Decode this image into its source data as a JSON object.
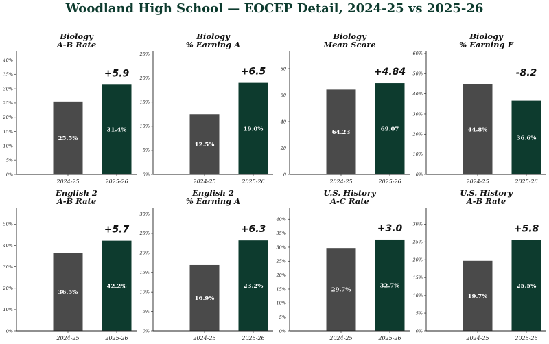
{
  "title": "Woodland High School — EOCEP Detail, 2024-25 vs 2025-26",
  "colors": {
    "prior": "#4a4a4a",
    "current": "#0d3b2e",
    "title": "#0d3b2e"
  },
  "chart_data": [
    {
      "type": "bar",
      "title_line1": "Biology",
      "title_line2": "A-B Rate",
      "categories": [
        "2024-25",
        "2025-26"
      ],
      "values": [
        25.5,
        31.4
      ],
      "value_labels": [
        "25.5%",
        "31.4%"
      ],
      "delta_label": "+5.9",
      "ylim": [
        0,
        43
      ],
      "yticks": [
        0,
        5,
        10,
        15,
        20,
        25,
        30,
        35,
        40
      ],
      "ytick_labels": [
        "0%",
        "5%",
        "10%",
        "15%",
        "20%",
        "25%",
        "30%",
        "35%",
        "40%"
      ]
    },
    {
      "type": "bar",
      "title_line1": "Biology",
      "title_line2": "% Earning A",
      "categories": [
        "2024-25",
        "2025-26"
      ],
      "values": [
        12.5,
        19.0
      ],
      "value_labels": [
        "12.5%",
        "19.0%"
      ],
      "delta_label": "+6.5",
      "ylim": [
        0,
        25.5
      ],
      "yticks": [
        0,
        5,
        10,
        15,
        20,
        25
      ],
      "ytick_labels": [
        "0%",
        "5%",
        "10%",
        "15%",
        "20%",
        "25%"
      ]
    },
    {
      "type": "bar",
      "title_line1": "Biology",
      "title_line2": "Mean Score",
      "categories": [
        "2024-25",
        "2025-26"
      ],
      "values": [
        64.23,
        69.07
      ],
      "value_labels": [
        "64.23",
        "69.07"
      ],
      "delta_label": "+4.84",
      "ylim": [
        0,
        93
      ],
      "yticks": [
        0,
        20,
        40,
        60,
        80
      ],
      "ytick_labels": [
        "0",
        "20",
        "40",
        "60",
        "80"
      ]
    },
    {
      "type": "bar",
      "title_line1": "Biology",
      "title_line2": "% Earning F",
      "categories": [
        "2024-25",
        "2025-26"
      ],
      "values": [
        44.8,
        36.6
      ],
      "value_labels": [
        "44.8%",
        "36.6%"
      ],
      "delta_label": "-8.2",
      "ylim": [
        0,
        61
      ],
      "yticks": [
        0,
        10,
        20,
        30,
        40,
        50,
        60
      ],
      "ytick_labels": [
        "0%",
        "10%",
        "20%",
        "30%",
        "40%",
        "50%",
        "60%"
      ]
    },
    {
      "type": "bar",
      "title_line1": "English 2",
      "title_line2": "A-B Rate",
      "categories": [
        "2024-25",
        "2025-26"
      ],
      "values": [
        36.5,
        42.2
      ],
      "value_labels": [
        "36.5%",
        "42.2%"
      ],
      "delta_label": "+5.7",
      "ylim": [
        0,
        57.5
      ],
      "yticks": [
        0,
        10,
        20,
        30,
        40,
        50
      ],
      "ytick_labels": [
        "0%",
        "10%",
        "20%",
        "30%",
        "40%",
        "50%"
      ]
    },
    {
      "type": "bar",
      "title_line1": "English 2",
      "title_line2": "% Earning A",
      "categories": [
        "2024-25",
        "2025-26"
      ],
      "values": [
        16.9,
        23.2
      ],
      "value_labels": [
        "16.9%",
        "23.2%"
      ],
      "delta_label": "+6.3",
      "ylim": [
        0,
        31.5
      ],
      "yticks": [
        0,
        5,
        10,
        15,
        20,
        25,
        30
      ],
      "ytick_labels": [
        "0%",
        "5%",
        "10%",
        "15%",
        "20%",
        "25%",
        "30%"
      ]
    },
    {
      "type": "bar",
      "title_line1": "U.S. History",
      "title_line2": "A-C Rate",
      "categories": [
        "2024-25",
        "2025-26"
      ],
      "values": [
        29.7,
        32.7
      ],
      "value_labels": [
        "29.7%",
        "32.7%"
      ],
      "delta_label": "+3.0",
      "ylim": [
        0,
        44
      ],
      "yticks": [
        0,
        5,
        10,
        15,
        20,
        25,
        30,
        35,
        40
      ],
      "ytick_labels": [
        "0%",
        "5%",
        "10%",
        "15%",
        "20%",
        "25%",
        "30%",
        "35%",
        "40%"
      ]
    },
    {
      "type": "bar",
      "title_line1": "U.S. History",
      "title_line2": "A-B Rate",
      "categories": [
        "2024-25",
        "2025-26"
      ],
      "values": [
        19.7,
        25.5
      ],
      "value_labels": [
        "19.7%",
        "25.5%"
      ],
      "delta_label": "+5.8",
      "ylim": [
        0,
        34.5
      ],
      "yticks": [
        0,
        5,
        10,
        15,
        20,
        25,
        30
      ],
      "ytick_labels": [
        "0%",
        "5%",
        "10%",
        "15%",
        "20%",
        "25%",
        "30%"
      ]
    }
  ]
}
